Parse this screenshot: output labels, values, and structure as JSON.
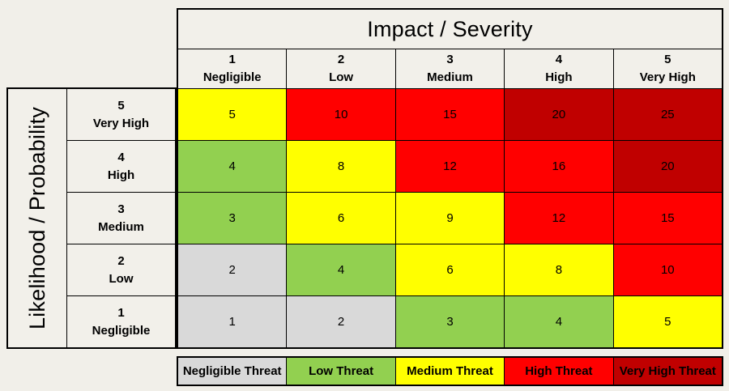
{
  "chart_data": {
    "type": "heatmap",
    "title": "Impact / Severity",
    "x_axis_title": "Impact / Severity",
    "y_axis_title": "Likelihood / Probability",
    "columns": [
      {
        "num": "1",
        "label": "Negligible"
      },
      {
        "num": "2",
        "label": "Low"
      },
      {
        "num": "3",
        "label": "Medium"
      },
      {
        "num": "4",
        "label": "High"
      },
      {
        "num": "5",
        "label": "Very High"
      }
    ],
    "rows": [
      {
        "num": "5",
        "label": "Very High",
        "cells": [
          {
            "value": 5,
            "color": "yellow"
          },
          {
            "value": 10,
            "color": "red"
          },
          {
            "value": 15,
            "color": "red"
          },
          {
            "value": 20,
            "color": "darkred"
          },
          {
            "value": 25,
            "color": "darkred"
          }
        ]
      },
      {
        "num": "4",
        "label": "High",
        "cells": [
          {
            "value": 4,
            "color": "green"
          },
          {
            "value": 8,
            "color": "yellow"
          },
          {
            "value": 12,
            "color": "red"
          },
          {
            "value": 16,
            "color": "red"
          },
          {
            "value": 20,
            "color": "darkred"
          }
        ]
      },
      {
        "num": "3",
        "label": "Medium",
        "cells": [
          {
            "value": 3,
            "color": "green"
          },
          {
            "value": 6,
            "color": "yellow"
          },
          {
            "value": 9,
            "color": "yellow"
          },
          {
            "value": 12,
            "color": "red"
          },
          {
            "value": 15,
            "color": "red"
          }
        ]
      },
      {
        "num": "2",
        "label": "Low",
        "cells": [
          {
            "value": 2,
            "color": "gray"
          },
          {
            "value": 4,
            "color": "green"
          },
          {
            "value": 6,
            "color": "yellow"
          },
          {
            "value": 8,
            "color": "yellow"
          },
          {
            "value": 10,
            "color": "red"
          }
        ]
      },
      {
        "num": "1",
        "label": "Negligible",
        "cells": [
          {
            "value": 1,
            "color": "gray"
          },
          {
            "value": 2,
            "color": "gray"
          },
          {
            "value": 3,
            "color": "green"
          },
          {
            "value": 4,
            "color": "green"
          },
          {
            "value": 5,
            "color": "yellow"
          }
        ]
      }
    ],
    "legend": [
      {
        "label": "Negligible Threat",
        "color": "gray"
      },
      {
        "label": "Low Threat",
        "color": "green"
      },
      {
        "label": "Medium Threat",
        "color": "yellow"
      },
      {
        "label": "High Threat",
        "color": "red"
      },
      {
        "label": "Very High Threat",
        "color": "darkred"
      }
    ],
    "legend_position": "bottom"
  },
  "colors": {
    "yellow": "#FFFF00",
    "red": "#FF0000",
    "darkred": "#C00000",
    "green": "#92D050",
    "gray": "#D9D9D9",
    "surface": "#F2F0EA",
    "page_bg": "#F1EFE9",
    "grid_line": "#000000",
    "text": "#000000"
  }
}
